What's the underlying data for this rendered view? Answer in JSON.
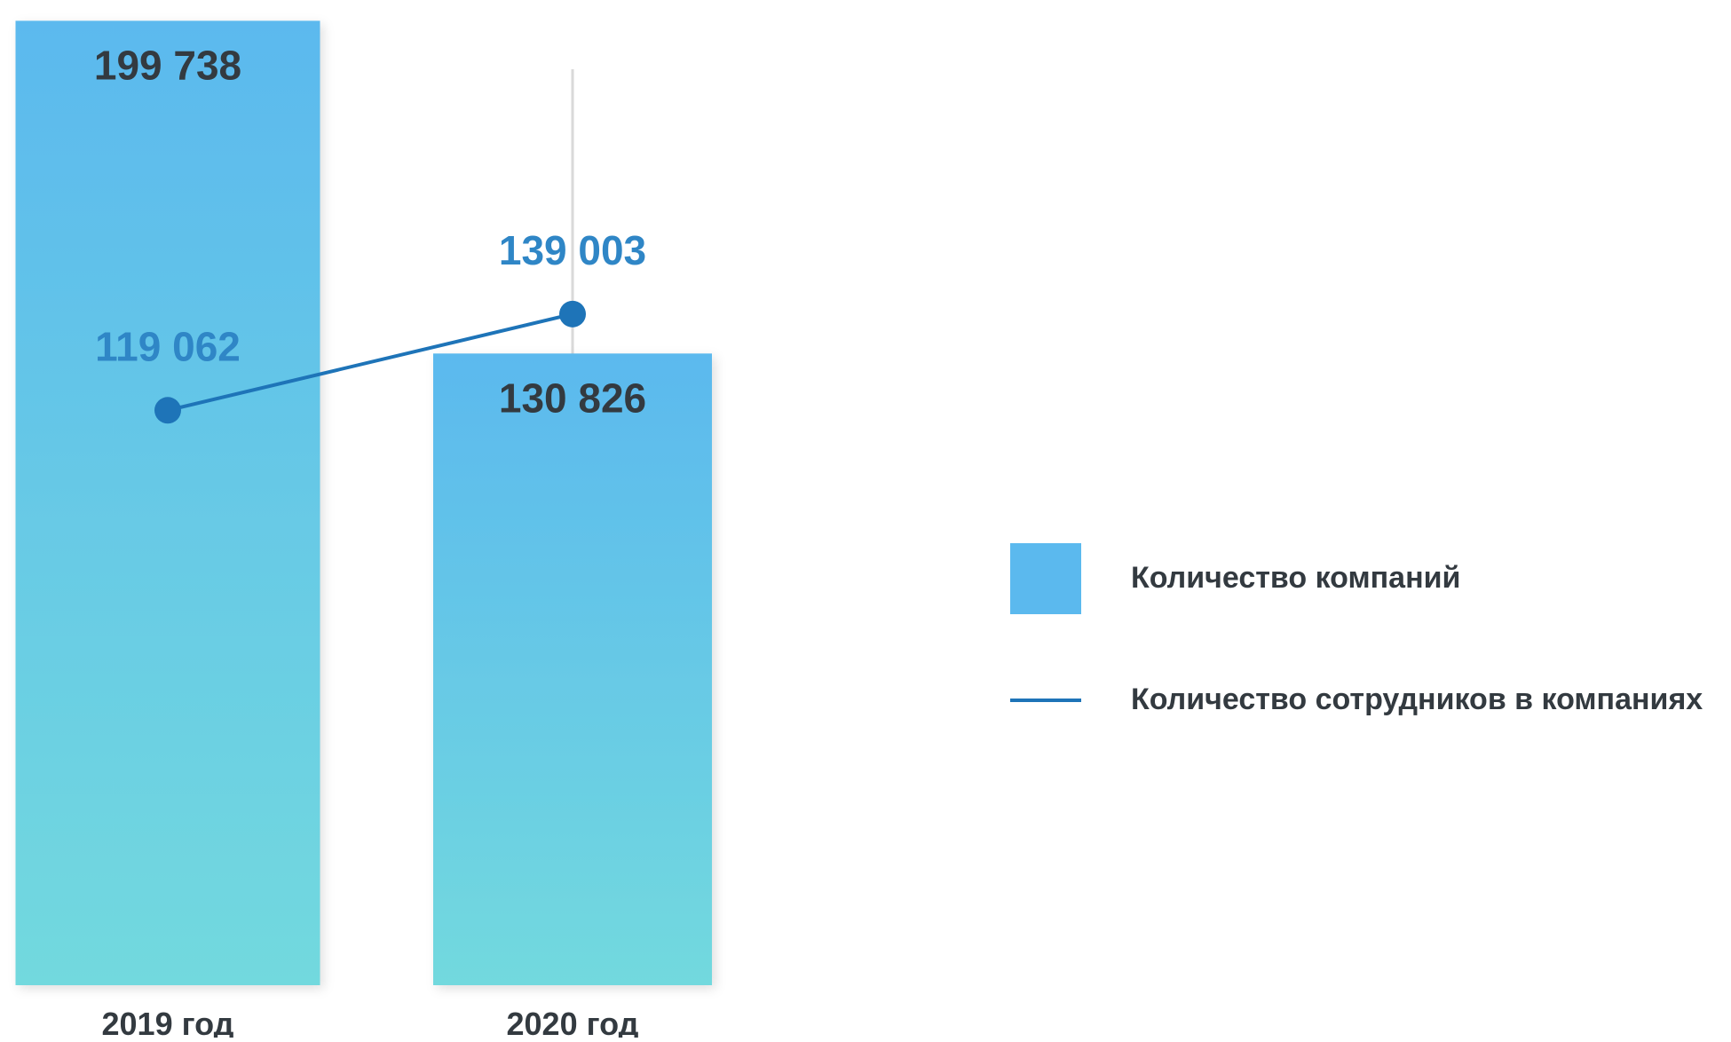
{
  "chart_data": {
    "type": "bar",
    "categories": [
      "2019 год",
      "2020 год"
    ],
    "series": [
      {
        "name": "Количество компаний",
        "type": "bar",
        "values": [
          199738,
          130826
        ],
        "labels": [
          "199 738",
          "130 826"
        ]
      },
      {
        "name": "Количество сотрудников в компаниях",
        "type": "line",
        "values": [
          119062,
          139003
        ],
        "labels": [
          "119 062",
          "139 003"
        ]
      }
    ],
    "title": "",
    "xlabel": "",
    "ylabel": "",
    "legend_position": "right",
    "grid": false
  },
  "colors": {
    "bar_top": "#5bb9ee",
    "bar_bottom": "#72d9de",
    "line": "#1e74b8",
    "line_label": "#2f86c6",
    "bar_label": "#333a40",
    "axis_label": "#333a40",
    "guide_line": "#d9d9d9"
  }
}
